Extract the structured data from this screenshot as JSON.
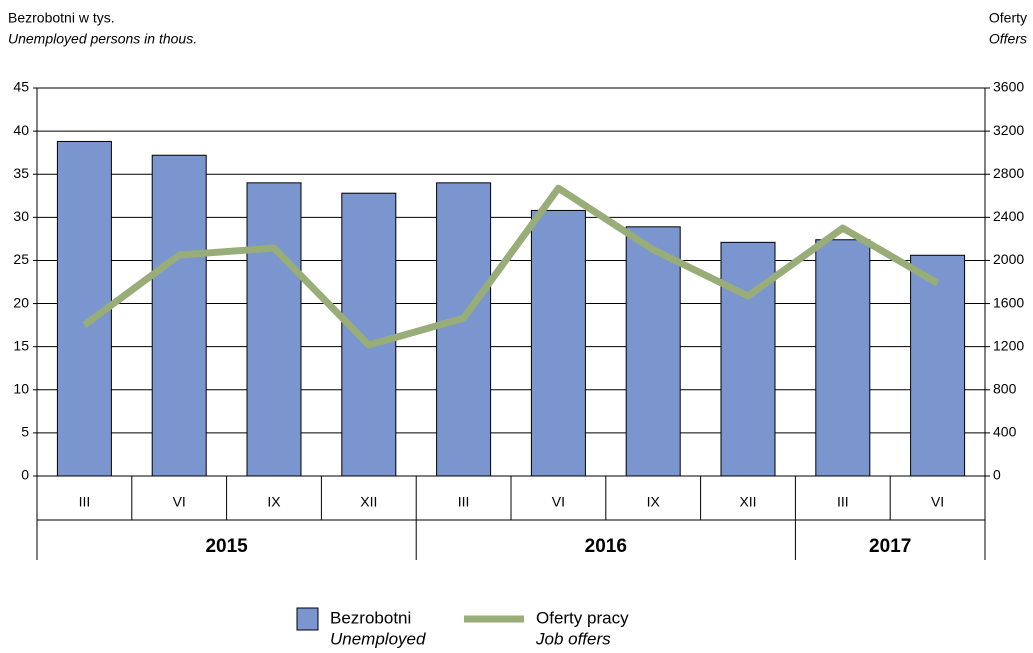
{
  "chart_data": {
    "type": "bar_line",
    "y_label": "Bezrobotni w tys.",
    "y_label_en": "Unemployed persons in thous.",
    "y2_label": "Oferty",
    "y2_label_en": "Offers",
    "groups": [
      {
        "label": "2015",
        "categories": [
          "III",
          "VI",
          "IX",
          "XII"
        ]
      },
      {
        "label": "2016",
        "categories": [
          "III",
          "VI",
          "IX",
          "XII"
        ]
      },
      {
        "label": "2017",
        "categories": [
          "III",
          "VI"
        ]
      }
    ],
    "series": [
      {
        "name": "Bezrobotni",
        "name_en": "Unemployed",
        "type": "bar",
        "color": "#7b96cf",
        "values": [
          38.8,
          37.2,
          34.0,
          32.8,
          34.0,
          30.8,
          28.9,
          27.1,
          27.4,
          25.6
        ]
      },
      {
        "name": "Oferty pracy",
        "name_en": "Job offers",
        "type": "line",
        "axis": "y2",
        "color": "#98ad78",
        "values": [
          1400,
          2050,
          2115,
          1215,
          1465,
          2670,
          2100,
          1670,
          2300,
          1790
        ]
      }
    ],
    "ylim": [
      0,
      45
    ],
    "yticks": [
      0,
      5,
      10,
      15,
      20,
      25,
      30,
      35,
      40,
      45
    ],
    "y2lim": [
      0,
      3600
    ],
    "y2ticks": [
      0,
      400,
      800,
      1200,
      1600,
      2000,
      2400,
      2800,
      3200,
      3600
    ],
    "grid": true
  }
}
